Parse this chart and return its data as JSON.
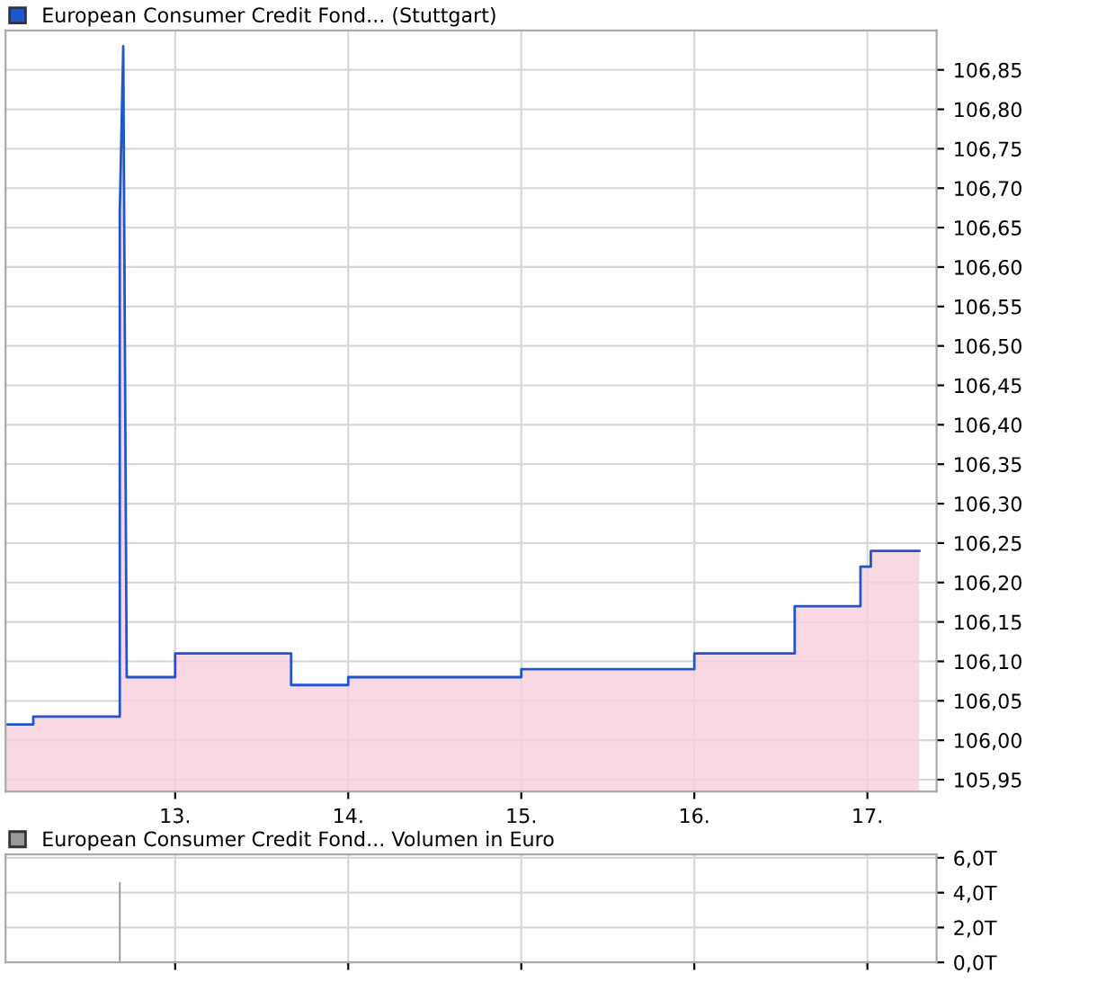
{
  "chart_data": [
    {
      "type": "area",
      "xlim": [
        12.02,
        17.4
      ],
      "ylim": [
        105.935,
        106.9
      ],
      "xticks": [
        {
          "value": 13,
          "label": "13."
        },
        {
          "value": 14,
          "label": "14."
        },
        {
          "value": 15,
          "label": "15."
        },
        {
          "value": 16,
          "label": "16."
        },
        {
          "value": 17,
          "label": "17."
        }
      ],
      "yticks": [
        {
          "value": 105.95,
          "label": "105,95"
        },
        {
          "value": 106.0,
          "label": "106,00"
        },
        {
          "value": 106.05,
          "label": "106,05"
        },
        {
          "value": 106.1,
          "label": "106,10"
        },
        {
          "value": 106.15,
          "label": "106,15"
        },
        {
          "value": 106.2,
          "label": "106,20"
        },
        {
          "value": 106.25,
          "label": "106,25"
        },
        {
          "value": 106.3,
          "label": "106,30"
        },
        {
          "value": 106.35,
          "label": "106,35"
        },
        {
          "value": 106.4,
          "label": "106,40"
        },
        {
          "value": 106.45,
          "label": "106,45"
        },
        {
          "value": 106.5,
          "label": "106,50"
        },
        {
          "value": 106.55,
          "label": "106,55"
        },
        {
          "value": 106.6,
          "label": "106,60"
        },
        {
          "value": 106.65,
          "label": "106,65"
        },
        {
          "value": 106.7,
          "label": "106,70"
        },
        {
          "value": 106.75,
          "label": "106,75"
        },
        {
          "value": 106.8,
          "label": "106,80"
        },
        {
          "value": 106.85,
          "label": "106,85"
        }
      ],
      "grid": true,
      "legend": "top left",
      "series": [
        {
          "name": "European Consumer Credit Fond... (Stuttgart)",
          "color": "#2255cc",
          "x": [
            12.02,
            12.18,
            12.18,
            12.68,
            12.68,
            12.68,
            12.7,
            12.71,
            12.72,
            13.0,
            13.0,
            13.67,
            13.67,
            14.0,
            14.0,
            15.0,
            15.0,
            16.0,
            16.0,
            16.58,
            16.58,
            16.96,
            16.96,
            17.02,
            17.02,
            17.3
          ],
          "values": [
            106.02,
            106.02,
            106.03,
            106.03,
            106.24,
            106.67,
            106.88,
            106.48,
            106.08,
            106.08,
            106.11,
            106.11,
            106.07,
            106.07,
            106.08,
            106.08,
            106.09,
            106.09,
            106.11,
            106.11,
            106.17,
            106.17,
            106.22,
            106.22,
            106.24,
            106.24
          ]
        }
      ]
    },
    {
      "type": "bar",
      "xlim": [
        12.02,
        17.4
      ],
      "ylim": [
        0,
        6.2
      ],
      "tick_labels": "y",
      "grid": true,
      "legend": "top left",
      "yticks": [
        {
          "value": 0,
          "label": "0,0T"
        },
        {
          "value": 2,
          "label": "2,0T"
        },
        {
          "value": 4,
          "label": "4,0T"
        },
        {
          "value": 6,
          "label": "6,0T"
        }
      ],
      "xticks": [
        {
          "value": 13,
          "label": null
        },
        {
          "value": 14,
          "label": null
        },
        {
          "value": 15,
          "label": null
        },
        {
          "value": 16,
          "label": null
        },
        {
          "value": 17,
          "label": null
        }
      ],
      "series": [
        {
          "name": "European Consumer Credit Fond... Volumen in Euro",
          "color": "#999999",
          "x": [
            12.68
          ],
          "values": [
            4.6
          ]
        }
      ]
    }
  ]
}
